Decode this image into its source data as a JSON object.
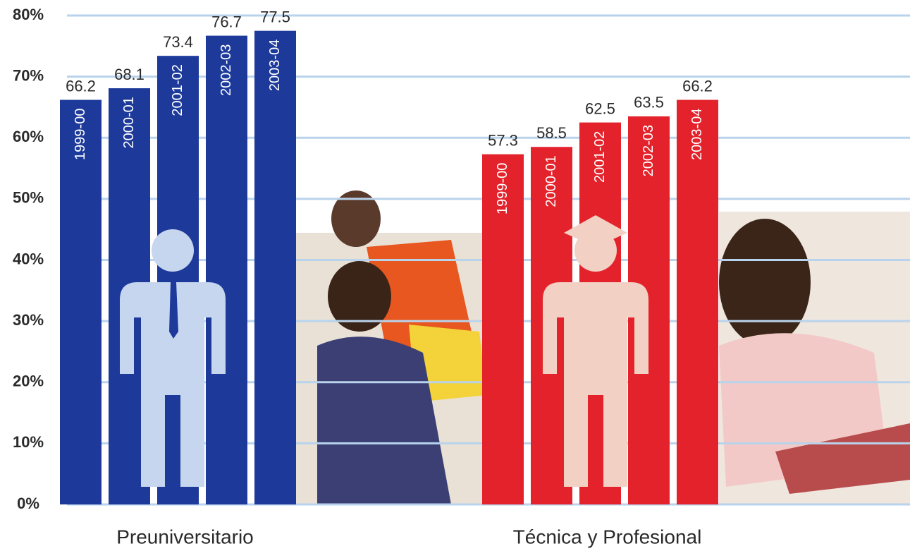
{
  "chart_data": {
    "type": "bar",
    "ylim": [
      0,
      80
    ],
    "yticks": [
      {
        "value": 0,
        "label": "0%"
      },
      {
        "value": 10,
        "label": "10%"
      },
      {
        "value": 20,
        "label": "20%"
      },
      {
        "value": 30,
        "label": "30%"
      },
      {
        "value": 40,
        "label": "40%"
      },
      {
        "value": 50,
        "label": "50%"
      },
      {
        "value": 60,
        "label": "60%"
      },
      {
        "value": 70,
        "label": "70%"
      },
      {
        "value": 80,
        "label": "80%"
      }
    ],
    "grid": true,
    "groups": [
      {
        "name": "Preuniversitario",
        "color": "#1d3a9b",
        "categories": [
          "1999-00",
          "2000-01",
          "2001-02",
          "2002-03",
          "2003-04"
        ],
        "values": [
          66.2,
          68.1,
          73.4,
          76.7,
          77.5
        ]
      },
      {
        "name": "Técnica y Profesional",
        "color": "#e3222b",
        "categories": [
          "1999-00",
          "2000-01",
          "2001-02",
          "2002-03",
          "2003-04"
        ],
        "values": [
          57.3,
          58.5,
          62.5,
          63.5,
          66.2
        ]
      }
    ]
  }
}
